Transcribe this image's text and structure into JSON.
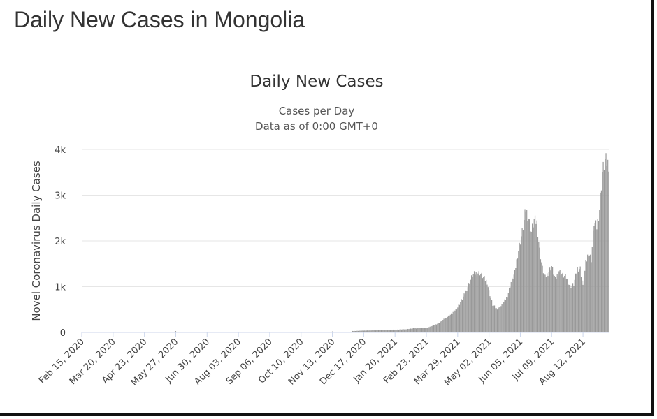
{
  "page": {
    "title": "Daily New Cases in Mongolia"
  },
  "chart_data": {
    "type": "bar",
    "title": "Daily New Cases",
    "subtitle": "Cases per Day",
    "subtitle2": "Data as of 0:00 GMT+0",
    "xlabel": "",
    "ylabel": "Novel Coronavirus Daily Cases",
    "ylim": [
      0,
      4000
    ],
    "yticks": [
      {
        "value": 0,
        "label": "0"
      },
      {
        "value": 1000,
        "label": "1k"
      },
      {
        "value": 2000,
        "label": "2k"
      },
      {
        "value": 3000,
        "label": "3k"
      },
      {
        "value": 4000,
        "label": "4k"
      }
    ],
    "xlim": [
      "2020-02-15",
      "2021-09-09"
    ],
    "xticks": [
      "Feb 15, 2020",
      "Mar 20, 2020",
      "Apr 23, 2020",
      "May 27, 2020",
      "Jun 30, 2020",
      "Aug 03, 2020",
      "Sep 06, 2020",
      "Oct 10, 2020",
      "Nov 13, 2020",
      "Dec 17, 2020",
      "Jan 20, 2021",
      "Feb 23, 2021",
      "Mar 29, 2021",
      "May 02, 2021",
      "Jun 05, 2021",
      "Jul 09, 2021",
      "Aug 12, 2021"
    ],
    "bar_color": "#999999",
    "grid": true,
    "series": [
      {
        "x": [
          "2020-05-27",
          "2020-11-13",
          "2020-12-05",
          "2020-12-17",
          "2021-01-05",
          "2021-01-20",
          "2021-02-01",
          "2021-02-10",
          "2021-02-23",
          "2021-03-01",
          "2021-03-08",
          "2021-03-15",
          "2021-03-22",
          "2021-03-29",
          "2021-04-02",
          "2021-04-06",
          "2021-04-10",
          "2021-04-14",
          "2021-04-18",
          "2021-04-22",
          "2021-04-26",
          "2021-04-30",
          "2021-05-02",
          "2021-05-06",
          "2021-05-10",
          "2021-05-14",
          "2021-05-18",
          "2021-05-22",
          "2021-05-26",
          "2021-05-30",
          "2021-06-02",
          "2021-06-05",
          "2021-06-08",
          "2021-06-11",
          "2021-06-14",
          "2021-06-17",
          "2021-06-20",
          "2021-06-23",
          "2021-06-26",
          "2021-06-29",
          "2021-07-02",
          "2021-07-05",
          "2021-07-09",
          "2021-07-13",
          "2021-07-17",
          "2021-07-21",
          "2021-07-25",
          "2021-07-29",
          "2021-08-02",
          "2021-08-06",
          "2021-08-09",
          "2021-08-12",
          "2021-08-15",
          "2021-08-18",
          "2021-08-21",
          "2021-08-24",
          "2021-08-27",
          "2021-08-30",
          "2021-09-02",
          "2021-09-05",
          "2021-09-08"
        ],
        "values": [
          30,
          20,
          30,
          40,
          50,
          60,
          70,
          90,
          100,
          140,
          200,
          300,
          400,
          550,
          700,
          850,
          1050,
          1250,
          1300,
          1300,
          1200,
          1100,
          900,
          600,
          520,
          550,
          650,
          800,
          1100,
          1300,
          1700,
          2000,
          2300,
          2700,
          2500,
          2200,
          2450,
          2400,
          1800,
          1400,
          1200,
          1300,
          1450,
          1150,
          1350,
          1250,
          1200,
          1000,
          1050,
          1400,
          1400,
          1000,
          1500,
          1750,
          1600,
          2400,
          2300,
          2700,
          3500,
          3750,
          3700
        ]
      }
    ]
  }
}
